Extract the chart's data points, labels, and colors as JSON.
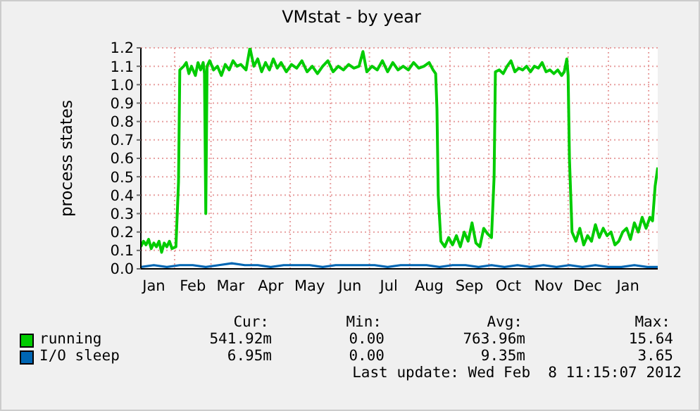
{
  "chart_data": {
    "type": "line",
    "title": "VMstat - by year",
    "ylabel": "process states",
    "xlim": [
      "2011-01-06",
      "2012-02-08"
    ],
    "xticks": [
      {
        "value": "2011-01-16",
        "label": "Jan"
      },
      {
        "value": "2011-02-15",
        "label": "Feb"
      },
      {
        "value": "2011-03-16",
        "label": "Mar"
      },
      {
        "value": "2011-04-16",
        "label": "Apr"
      },
      {
        "value": "2011-05-16",
        "label": "May"
      },
      {
        "value": "2011-06-16",
        "label": "Jun"
      },
      {
        "value": "2011-07-16",
        "label": "Jul"
      },
      {
        "value": "2011-08-16",
        "label": "Aug"
      },
      {
        "value": "2011-09-16",
        "label": "Sep"
      },
      {
        "value": "2011-10-16",
        "label": "Oct"
      },
      {
        "value": "2011-11-16",
        "label": "Nov"
      },
      {
        "value": "2011-12-16",
        "label": "Dec"
      },
      {
        "value": "2012-01-16",
        "label": "Jan"
      },
      {
        "value": "2011-02-01",
        "label": null
      },
      {
        "value": "2011-03-01",
        "label": null
      },
      {
        "value": "2011-04-01",
        "label": null
      },
      {
        "value": "2011-05-01",
        "label": null
      },
      {
        "value": "2011-06-01",
        "label": null
      },
      {
        "value": "2011-07-01",
        "label": null
      },
      {
        "value": "2011-08-01",
        "label": null
      },
      {
        "value": "2011-09-01",
        "label": null
      },
      {
        "value": "2011-10-01",
        "label": null
      },
      {
        "value": "2011-11-01",
        "label": null
      },
      {
        "value": "2011-12-01",
        "label": null
      },
      {
        "value": "2012-01-01",
        "label": null
      },
      {
        "value": "2012-02-01",
        "label": null
      }
    ],
    "ylim": [
      0,
      1.2
    ],
    "yticks": [
      {
        "value": 0,
        "label": "0.0"
      },
      {
        "value": 0.1,
        "label": "0.1"
      },
      {
        "value": 0.2,
        "label": "0.2"
      },
      {
        "value": 0.3,
        "label": "0.3"
      },
      {
        "value": 0.4,
        "label": "0.4"
      },
      {
        "value": 0.5,
        "label": "0.5"
      },
      {
        "value": 0.6,
        "label": "0.6"
      },
      {
        "value": 0.7,
        "label": "0.7"
      },
      {
        "value": 0.8,
        "label": "0.8"
      },
      {
        "value": 0.9,
        "label": "0.9"
      },
      {
        "value": 1.0,
        "label": "1.0"
      },
      {
        "value": 1.1,
        "label": "1.1"
      },
      {
        "value": 1.2,
        "label": "1.2"
      }
    ],
    "grid": true,
    "legend": "bottom",
    "marker": "none",
    "series": [
      {
        "name": "running",
        "color": "#00cc00",
        "x": [
          "2011-01-06",
          "2011-01-08",
          "2011-01-10",
          "2011-01-12",
          "2011-01-14",
          "2011-01-16",
          "2011-01-18",
          "2011-01-20",
          "2011-01-22",
          "2011-01-24",
          "2011-01-26",
          "2011-01-28",
          "2011-01-30",
          "2011-02-02",
          "2011-02-04",
          "2011-02-05",
          "2011-02-08",
          "2011-02-10",
          "2011-02-12",
          "2011-02-14",
          "2011-02-17",
          "2011-02-19",
          "2011-02-21",
          "2011-02-23",
          "2011-02-24",
          "2011-02-25",
          "2011-02-26",
          "2011-02-28",
          "2011-03-03",
          "2011-03-06",
          "2011-03-09",
          "2011-03-12",
          "2011-03-15",
          "2011-03-18",
          "2011-03-21",
          "2011-03-24",
          "2011-03-28",
          "2011-03-31",
          "2011-04-03",
          "2011-04-06",
          "2011-04-09",
          "2011-04-12",
          "2011-04-15",
          "2011-04-18",
          "2011-04-21",
          "2011-04-24",
          "2011-04-28",
          "2011-05-02",
          "2011-05-06",
          "2011-05-10",
          "2011-05-14",
          "2011-05-18",
          "2011-05-22",
          "2011-05-26",
          "2011-05-30",
          "2011-06-03",
          "2011-06-07",
          "2011-06-11",
          "2011-06-15",
          "2011-06-19",
          "2011-06-23",
          "2011-06-26",
          "2011-06-29",
          "2011-07-03",
          "2011-07-07",
          "2011-07-11",
          "2011-07-15",
          "2011-07-19",
          "2011-07-23",
          "2011-07-27",
          "2011-07-31",
          "2011-08-04",
          "2011-08-08",
          "2011-08-12",
          "2011-08-16",
          "2011-08-19",
          "2011-08-21",
          "2011-08-22",
          "2011-08-23",
          "2011-08-25",
          "2011-08-28",
          "2011-08-31",
          "2011-09-03",
          "2011-09-06",
          "2011-09-09",
          "2011-09-12",
          "2011-09-15",
          "2011-09-18",
          "2011-09-21",
          "2011-09-24",
          "2011-09-27",
          "2011-09-30",
          "2011-10-03",
          "2011-10-05",
          "2011-10-06",
          "2011-10-09",
          "2011-10-12",
          "2011-10-15",
          "2011-10-18",
          "2011-10-21",
          "2011-10-24",
          "2011-10-27",
          "2011-10-30",
          "2011-11-02",
          "2011-11-05",
          "2011-11-08",
          "2011-11-11",
          "2011-11-14",
          "2011-11-17",
          "2011-11-20",
          "2011-11-23",
          "2011-11-26",
          "2011-11-28",
          "2011-11-30",
          "2011-12-01",
          "2011-12-02",
          "2011-12-04",
          "2011-12-07",
          "2011-12-10",
          "2011-12-13",
          "2011-12-16",
          "2011-12-19",
          "2011-12-22",
          "2011-12-25",
          "2011-12-28",
          "2011-12-31",
          "2012-01-03",
          "2012-01-06",
          "2012-01-09",
          "2012-01-12",
          "2012-01-15",
          "2012-01-18",
          "2012-01-21",
          "2012-01-24",
          "2012-01-27",
          "2012-01-30",
          "2012-02-02",
          "2012-02-04",
          "2012-02-06",
          "2012-02-08"
        ],
        "values": [
          0.12,
          0.15,
          0.13,
          0.16,
          0.11,
          0.14,
          0.12,
          0.15,
          0.09,
          0.14,
          0.12,
          0.15,
          0.11,
          0.12,
          0.47,
          1.08,
          1.1,
          1.12,
          1.06,
          1.1,
          1.05,
          1.12,
          1.08,
          1.12,
          1.06,
          0.3,
          1.1,
          1.13,
          1.08,
          1.1,
          1.05,
          1.11,
          1.08,
          1.13,
          1.1,
          1.11,
          1.08,
          1.2,
          1.1,
          1.14,
          1.07,
          1.12,
          1.08,
          1.14,
          1.09,
          1.12,
          1.07,
          1.11,
          1.09,
          1.13,
          1.07,
          1.1,
          1.06,
          1.1,
          1.13,
          1.07,
          1.1,
          1.08,
          1.11,
          1.09,
          1.1,
          1.18,
          1.07,
          1.1,
          1.08,
          1.13,
          1.07,
          1.12,
          1.08,
          1.1,
          1.08,
          1.12,
          1.09,
          1.1,
          1.12,
          1.08,
          1.06,
          0.87,
          0.4,
          0.15,
          0.12,
          0.17,
          0.13,
          0.18,
          0.12,
          0.2,
          0.15,
          0.25,
          0.14,
          0.12,
          0.22,
          0.19,
          0.17,
          0.5,
          1.07,
          1.08,
          1.06,
          1.1,
          1.13,
          1.07,
          1.09,
          1.08,
          1.1,
          1.07,
          1.1,
          1.09,
          1.12,
          1.07,
          1.08,
          1.06,
          1.08,
          1.05,
          1.07,
          1.14,
          1.05,
          0.6,
          0.2,
          0.15,
          0.22,
          0.13,
          0.18,
          0.15,
          0.24,
          0.17,
          0.22,
          0.18,
          0.2,
          0.13,
          0.15,
          0.2,
          0.22,
          0.16,
          0.25,
          0.2,
          0.28,
          0.22,
          0.28,
          0.26,
          0.45,
          0.55
        ]
      },
      {
        "name": "I/O sleep",
        "color": "#0066b3",
        "x": [
          "2011-01-06",
          "2011-01-16",
          "2011-01-26",
          "2011-02-05",
          "2011-02-15",
          "2011-02-25",
          "2011-03-07",
          "2011-03-17",
          "2011-03-27",
          "2011-04-06",
          "2011-04-16",
          "2011-04-26",
          "2011-05-06",
          "2011-05-16",
          "2011-05-26",
          "2011-06-05",
          "2011-06-15",
          "2011-06-25",
          "2011-07-05",
          "2011-07-15",
          "2011-07-25",
          "2011-08-04",
          "2011-08-14",
          "2011-08-24",
          "2011-09-03",
          "2011-09-13",
          "2011-09-23",
          "2011-10-03",
          "2011-10-13",
          "2011-10-23",
          "2011-11-02",
          "2011-11-12",
          "2011-11-22",
          "2011-12-02",
          "2011-12-12",
          "2011-12-22",
          "2012-01-01",
          "2012-01-11",
          "2012-01-21",
          "2012-01-31",
          "2012-02-08"
        ],
        "values": [
          0.01,
          0.02,
          0.01,
          0.02,
          0.02,
          0.01,
          0.02,
          0.03,
          0.02,
          0.02,
          0.01,
          0.02,
          0.02,
          0.02,
          0.01,
          0.02,
          0.02,
          0.02,
          0.02,
          0.01,
          0.02,
          0.02,
          0.02,
          0.01,
          0.02,
          0.02,
          0.01,
          0.02,
          0.01,
          0.02,
          0.01,
          0.02,
          0.01,
          0.02,
          0.01,
          0.02,
          0.01,
          0.01,
          0.02,
          0.01,
          0.01
        ]
      }
    ],
    "annotations": [
      "Cur:",
      "Min:",
      "Avg:",
      "Max:",
      "541.92m",
      "0.00",
      "763.96m",
      "15.64",
      "6.95m",
      "0.00",
      "9.35m",
      "3.65",
      "Last update: Wed Feb  8 11:15:07 2012"
    ]
  }
}
